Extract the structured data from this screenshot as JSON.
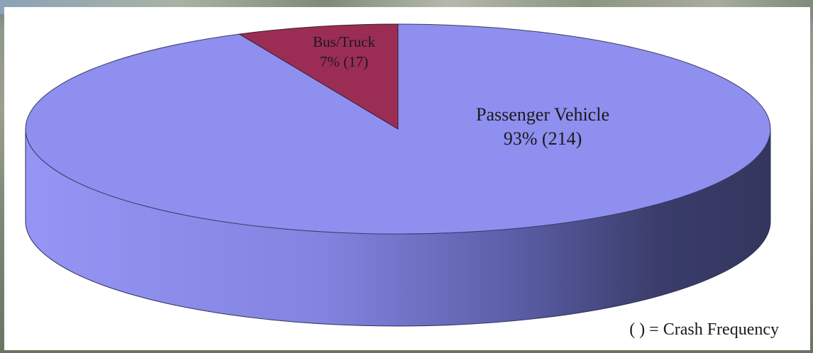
{
  "chart_data": {
    "type": "pie",
    "style": "3d",
    "slices": [
      {
        "label": "Passenger Vehicle",
        "percent": 93,
        "frequency": 214,
        "value_label": "93% (214)",
        "color": "#8f8ff0"
      },
      {
        "label": "Bus/Truck",
        "percent": 7,
        "frequency": 17,
        "value_label": "7% (17)",
        "color": "#9b2d55"
      }
    ],
    "annotation": "( ) = Crash Frequency",
    "colors": {
      "side_light": "#8f8ff0",
      "side_dark": "#33365e"
    }
  }
}
